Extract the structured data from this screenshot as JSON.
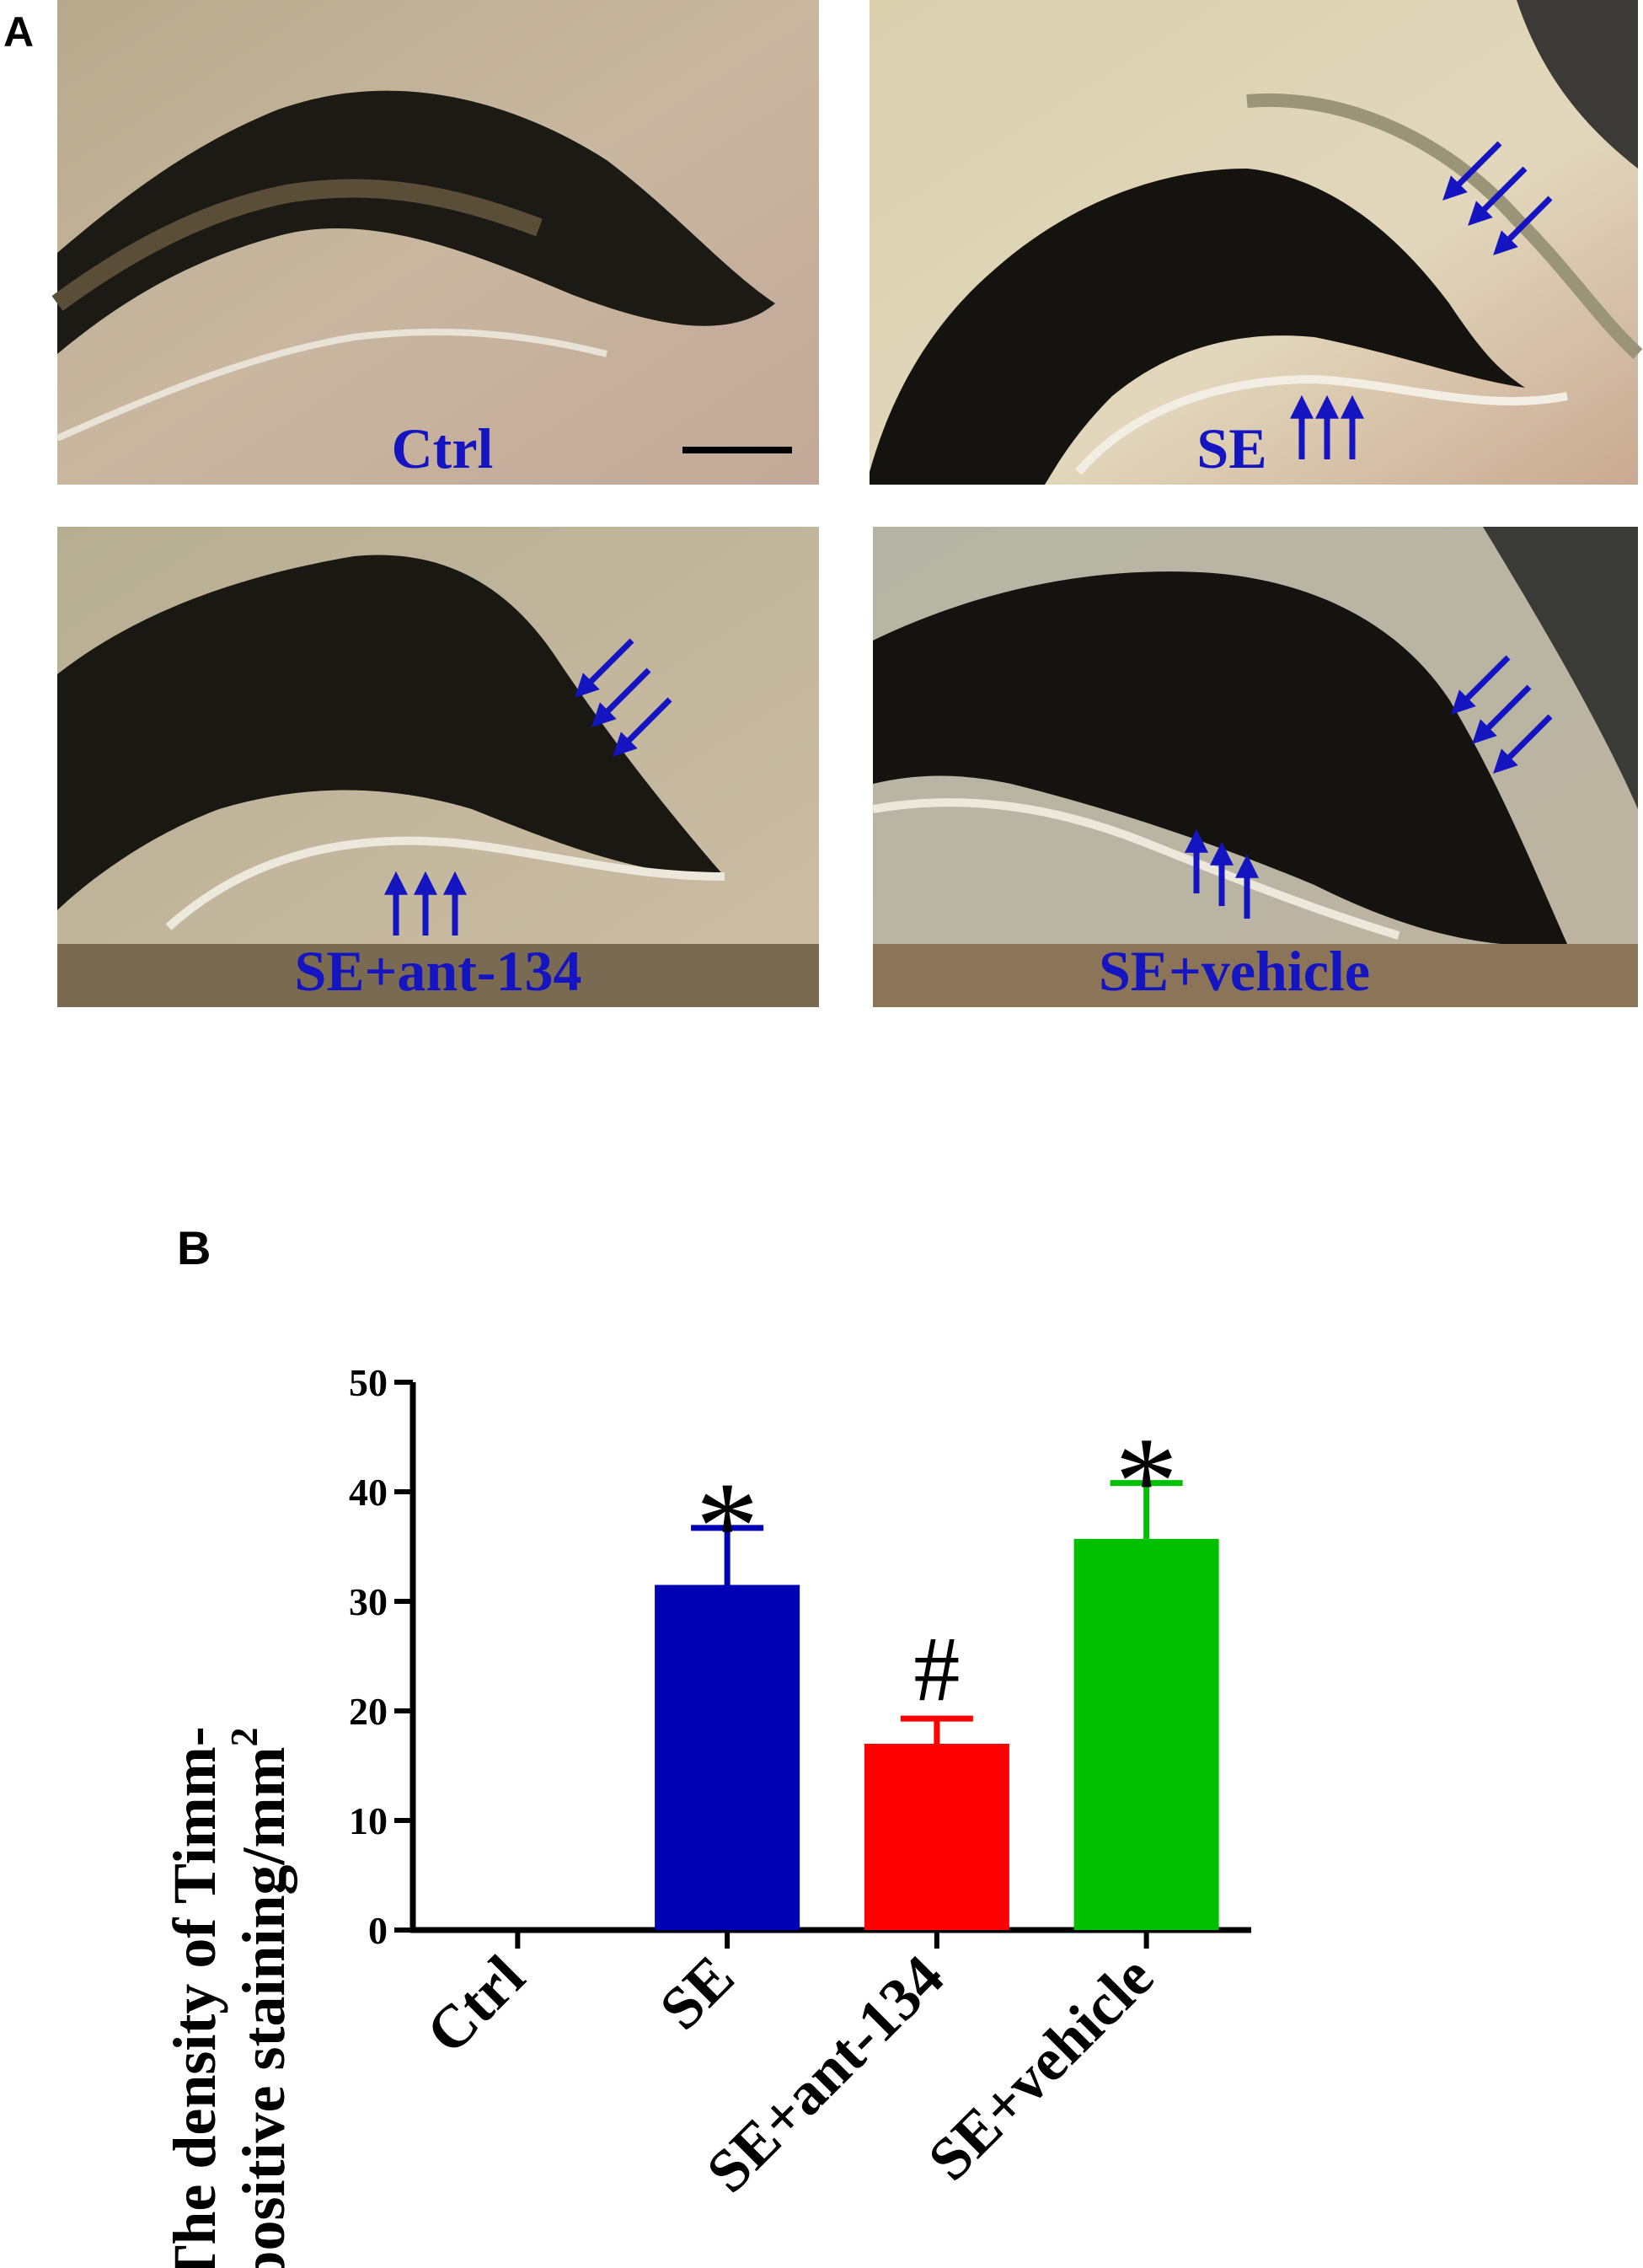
{
  "panel_a": {
    "letter": "A",
    "images": [
      {
        "label": "Ctrl"
      },
      {
        "label": "SE"
      },
      {
        "label": "SE+ant-134"
      },
      {
        "label": "SE+vehicle"
      }
    ]
  },
  "panel_b": {
    "letter": "B"
  },
  "chart_data": {
    "type": "bar",
    "categories": [
      "Ctrl",
      "SE",
      "SE+ant-134",
      "SE+vehicle"
    ],
    "values": [
      0,
      31.5,
      17,
      35.7
    ],
    "errors": [
      0,
      5.2,
      2.3,
      5.1
    ],
    "colors": [
      "#000000",
      "#0000b4",
      "#ff0000",
      "#00c000"
    ],
    "annotations": [
      "",
      "*",
      "#",
      "*"
    ],
    "ylabel_line1": "The density of Timm-",
    "ylabel_line2": "positive staining/mm",
    "ylabel_superscript": "2",
    "ylim": [
      0,
      50
    ],
    "yticks": [
      0,
      10,
      20,
      30,
      40,
      50
    ],
    "grid": false,
    "legend": "none"
  }
}
